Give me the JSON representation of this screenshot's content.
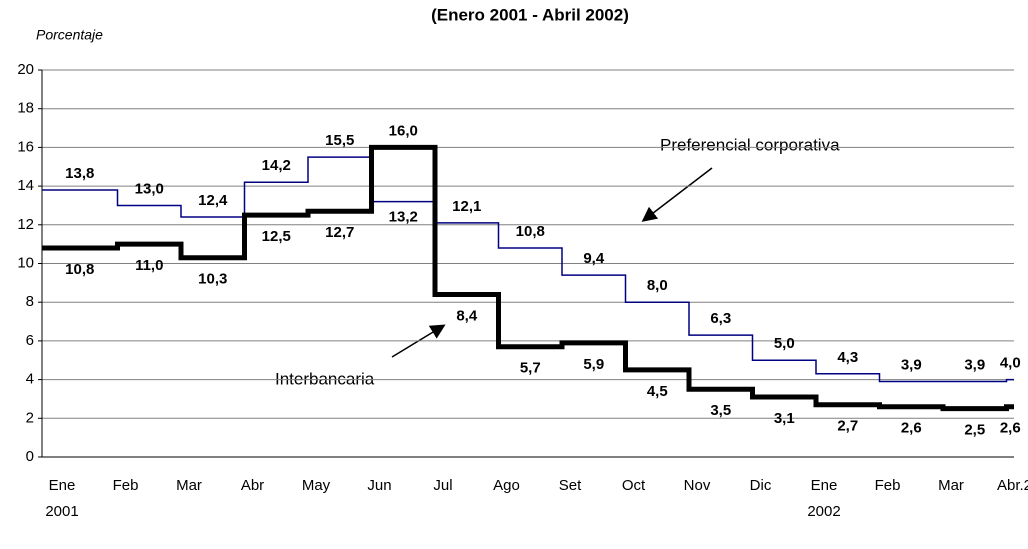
{
  "chart_data": {
    "type": "step",
    "title": "(Enero 2001 - Abril 2002)",
    "y_label": "Porcentaje",
    "categories": [
      "Ene",
      "Feb",
      "Mar",
      "Abr",
      "May",
      "Jun",
      "Jul",
      "Ago",
      "Set",
      "Oct",
      "Nov",
      "Dic",
      "Ene",
      "Feb",
      "Mar",
      "Abr.2"
    ],
    "years": [
      "2001",
      "2002"
    ],
    "series": [
      {
        "name": "Preferencial corporativa",
        "color": "#000080",
        "values": [
          13.8,
          13.0,
          12.4,
          14.2,
          15.5,
          13.2,
          12.1,
          10.8,
          9.4,
          8.0,
          6.3,
          5.0,
          4.3,
          3.9,
          3.9,
          4.0
        ],
        "value_labels": [
          "13,8",
          "13,0",
          "12,4",
          "14,2",
          "15,5",
          "13,2",
          "12,1",
          "10,8",
          "9,4",
          "8,0",
          "6,3",
          "5,0",
          "4,3",
          "3,9",
          "3,9",
          "4,0"
        ]
      },
      {
        "name": "Interbancaria",
        "color": "#000000",
        "values": [
          10.8,
          11.0,
          10.3,
          12.5,
          12.7,
          16.0,
          8.4,
          5.7,
          5.9,
          4.5,
          3.5,
          3.1,
          2.7,
          2.6,
          2.5,
          2.6
        ],
        "value_labels": [
          "10,8",
          "11,0",
          "10,3",
          "12,5",
          "12,7",
          "16,0",
          "8,4",
          "5,7",
          "5,9",
          "4,5",
          "3,5",
          "3,1",
          "2,7",
          "2,6",
          "2,5",
          "2,6"
        ]
      }
    ],
    "ylim": [
      0,
      20
    ],
    "yticks": [
      0,
      2,
      4,
      6,
      8,
      10,
      12,
      14,
      16,
      18,
      20
    ],
    "grid": true
  }
}
